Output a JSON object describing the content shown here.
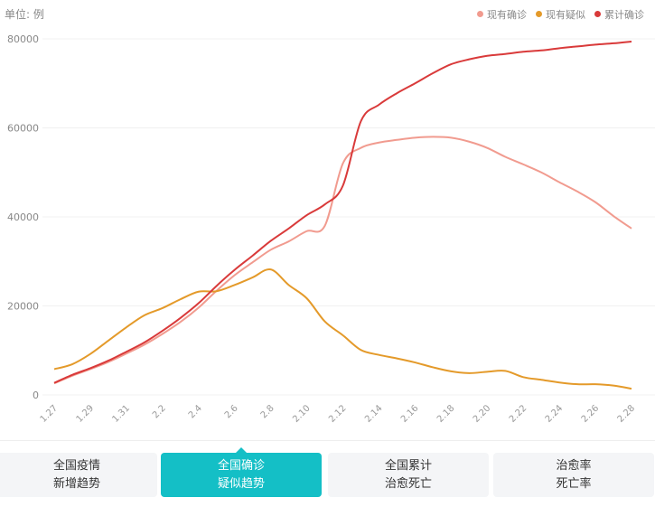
{
  "unit_label": "单位: 例",
  "legend": [
    {
      "label": "现有确诊",
      "color": "#f19b8f"
    },
    {
      "label": "现有疑似",
      "color": "#e49a2a"
    },
    {
      "label": "累计确诊",
      "color": "#d93a3a"
    }
  ],
  "tabs": [
    {
      "line1": "全国疫情",
      "line2": "新增趋势",
      "active": false
    },
    {
      "line1": "全国确诊",
      "line2": "疑似趋势",
      "active": true
    },
    {
      "line1": "全国累计",
      "line2": "治愈死亡",
      "active": false
    },
    {
      "line1": "治愈率",
      "line2": "死亡率",
      "active": false
    }
  ],
  "chart_data": {
    "type": "line",
    "title": "",
    "xlabel": "",
    "ylabel": "单位: 例",
    "ylim": [
      0,
      80000
    ],
    "yticks": [
      0,
      20000,
      40000,
      60000,
      80000
    ],
    "x": [
      "1.27",
      "1.28",
      "1.29",
      "1.30",
      "1.31",
      "2.1",
      "2.2",
      "2.3",
      "2.4",
      "2.5",
      "2.6",
      "2.7",
      "2.8",
      "2.9",
      "2.10",
      "2.11",
      "2.12",
      "2.13",
      "2.14",
      "2.15",
      "2.16",
      "2.17",
      "2.18",
      "2.19",
      "2.20",
      "2.21",
      "2.22",
      "2.23",
      "2.24",
      "2.25",
      "2.26",
      "2.27",
      "2.28"
    ],
    "xtick_labels": [
      "1.27",
      "1.29",
      "1.31",
      "2.2",
      "2.4",
      "2.6",
      "2.8",
      "2.10",
      "2.12",
      "2.14",
      "2.16",
      "2.18",
      "2.20",
      "2.22",
      "2.24",
      "2.26",
      "2.28"
    ],
    "legend_position": "top-right",
    "series": [
      {
        "name": "现有确诊",
        "color": "#f19b8f",
        "values": [
          2600,
          4300,
          5800,
          7400,
          9300,
          11300,
          13700,
          16400,
          19600,
          23400,
          26900,
          29800,
          32600,
          34500,
          36800,
          38000,
          52000,
          55500,
          56700,
          57300,
          57800,
          58000,
          57800,
          56900,
          55500,
          53500,
          51800,
          50000,
          47800,
          45700,
          43300,
          40200,
          37400
        ]
      },
      {
        "name": "现有疑似",
        "color": "#e49a2a",
        "values": [
          5800,
          6900,
          9200,
          12200,
          15200,
          17900,
          19500,
          21500,
          23200,
          23300,
          24700,
          26400,
          28200,
          24700,
          21700,
          16500,
          13400,
          10100,
          9000,
          8200,
          7300,
          6200,
          5300,
          4900,
          5200,
          5400,
          4000,
          3400,
          2800,
          2400,
          2400,
          2100,
          1400
        ]
      },
      {
        "name": "累计确诊",
        "color": "#d93a3a",
        "values": [
          2700,
          4500,
          6000,
          7700,
          9700,
          11800,
          14400,
          17300,
          20600,
          24500,
          28100,
          31300,
          34600,
          37400,
          40400,
          42800,
          47000,
          61500,
          65200,
          67800,
          70000,
          72300,
          74300,
          75400,
          76200,
          76600,
          77100,
          77400,
          77900,
          78300,
          78700,
          79000,
          79400
        ]
      }
    ]
  }
}
